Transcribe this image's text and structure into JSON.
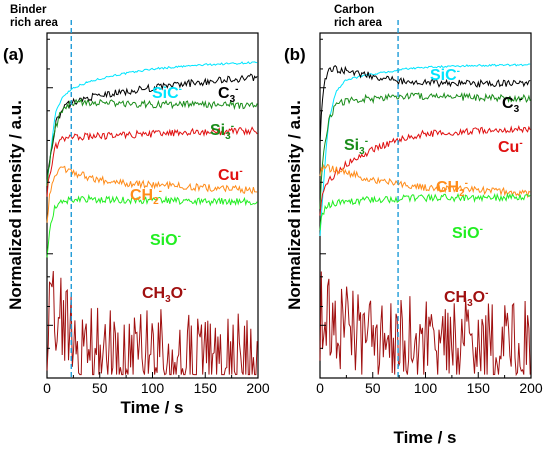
{
  "chart_data": [
    {
      "type": "line",
      "panel_label": "(a)",
      "header": [
        "Binder",
        "rich area"
      ],
      "xlabel": "Time / s",
      "ylabel": "Normalized intensity / a.u.",
      "xlim": [
        0,
        200
      ],
      "xticks": [
        "0",
        "50",
        "100",
        "150",
        "200"
      ],
      "y_scale": "log",
      "vline_x": 23,
      "series": [
        {
          "name": "SiC",
          "charge": "-",
          "color": "#00e5ff",
          "x": [
            0,
            3,
            8,
            15,
            25,
            40,
            60,
            100,
            150,
            200
          ],
          "y": [
            2.0,
            2.5,
            3.9,
            4.6,
            5.0,
            5.3,
            5.6,
            6.0,
            6.25,
            6.4
          ]
        },
        {
          "name": "C",
          "sub": "3",
          "charge": "-",
          "color": "#000000",
          "x": [
            0,
            3,
            8,
            15,
            25,
            40,
            60,
            100,
            150,
            200
          ],
          "y": [
            2.0,
            2.5,
            3.5,
            4.1,
            4.35,
            4.55,
            4.7,
            5.0,
            5.3,
            5.55
          ]
        },
        {
          "name": "Si",
          "sub": "3",
          "charge": "-",
          "color": "#1a8c1a",
          "x": [
            0,
            3,
            8,
            15,
            25,
            40,
            60,
            100,
            150,
            200
          ],
          "y": [
            2.0,
            2.5,
            3.4,
            4.1,
            4.3,
            4.35,
            4.3,
            4.25,
            4.25,
            4.2
          ]
        },
        {
          "name": "Cu",
          "charge": "-",
          "color": "#e01010",
          "x": [
            0,
            3,
            8,
            15,
            25,
            40,
            60,
            100,
            150,
            200
          ],
          "y": [
            1.8,
            2.2,
            2.8,
            3.05,
            3.1,
            3.12,
            3.15,
            3.2,
            3.25,
            3.3
          ]
        },
        {
          "name": "CH",
          "sub": "2",
          "charge": "-",
          "color": "#ff8c1a",
          "x": [
            0,
            3,
            8,
            15,
            25,
            40,
            60,
            100,
            150,
            200
          ],
          "y": [
            1.4,
            1.8,
            2.2,
            2.3,
            2.2,
            2.1,
            2.0,
            1.95,
            1.9,
            1.85
          ]
        },
        {
          "name": "SiO",
          "charge": "-",
          "color": "#22ee22",
          "x": [
            0,
            3,
            8,
            15,
            25,
            40,
            60,
            100,
            150,
            200
          ],
          "y": [
            1.0,
            1.3,
            1.6,
            1.65,
            1.7,
            1.7,
            1.68,
            1.68,
            1.66,
            1.66
          ]
        },
        {
          "name": "CH",
          "sub": "3",
          "mid": "O",
          "charge": "-",
          "color": "#a01010",
          "x": [
            0,
            3,
            8,
            15,
            25,
            40,
            60,
            100,
            150,
            200
          ],
          "y": [
            0.5,
            0.58,
            0.55,
            0.5,
            0.45,
            0.42,
            0.4,
            0.38,
            0.37,
            0.36
          ]
        }
      ]
    },
    {
      "type": "line",
      "panel_label": "(b)",
      "header": [
        "Carbon",
        "rich area"
      ],
      "xlabel": "Time / s",
      "ylabel": "Normalized intensity / a.u.",
      "xlim": [
        0,
        200
      ],
      "xticks": [
        "0",
        "50",
        "100",
        "150",
        "200"
      ],
      "y_scale": "log",
      "vline_x": 74,
      "series": [
        {
          "name": "SiC",
          "charge": "-",
          "color": "#00e5ff",
          "x": [
            0,
            3,
            8,
            15,
            25,
            40,
            60,
            74,
            80,
            100,
            150,
            200
          ],
          "y": [
            1.2,
            1.8,
            3.5,
            4.8,
            5.4,
            5.6,
            5.8,
            5.9,
            6.0,
            6.1,
            6.2,
            6.25
          ]
        },
        {
          "name": "C",
          "sub": "3",
          "charge": "-",
          "color": "#000000",
          "x": [
            0,
            3,
            8,
            15,
            25,
            40,
            60,
            74,
            80,
            100,
            150,
            200
          ],
          "y": [
            3.0,
            5.0,
            5.9,
            6.0,
            5.9,
            5.7,
            5.5,
            5.3,
            5.3,
            5.25,
            5.2,
            5.2
          ]
        },
        {
          "name": "Si",
          "sub": "3",
          "charge": "-",
          "color": "#1a8c1a",
          "x": [
            0,
            3,
            8,
            15,
            25,
            40,
            60,
            74,
            80,
            100,
            150,
            200
          ],
          "y": [
            1.6,
            2.6,
            3.6,
            4.2,
            4.4,
            4.5,
            4.5,
            4.6,
            4.6,
            4.6,
            4.55,
            4.5
          ]
        },
        {
          "name": "Cu",
          "charge": "-",
          "color": "#e01010",
          "x": [
            0,
            3,
            8,
            15,
            25,
            40,
            60,
            74,
            80,
            100,
            150,
            200
          ],
          "y": [
            1.5,
            1.8,
            2.0,
            2.2,
            2.4,
            2.6,
            2.85,
            3.0,
            3.1,
            3.2,
            3.3,
            3.35
          ]
        },
        {
          "name": "CH",
          "sub": "2",
          "charge": "-",
          "color": "#ff8c1a",
          "x": [
            0,
            3,
            8,
            15,
            25,
            40,
            60,
            74,
            80,
            100,
            150,
            200
          ],
          "y": [
            2.2,
            2.3,
            2.3,
            2.25,
            2.2,
            2.1,
            2.0,
            2.0,
            1.95,
            1.9,
            1.85,
            1.8
          ]
        },
        {
          "name": "SiO",
          "charge": "-",
          "color": "#22ee22",
          "x": [
            0,
            3,
            8,
            15,
            25,
            40,
            60,
            74,
            80,
            100,
            150,
            200
          ],
          "y": [
            1.3,
            1.5,
            1.6,
            1.65,
            1.65,
            1.68,
            1.68,
            1.7,
            1.72,
            1.72,
            1.72,
            1.72
          ]
        },
        {
          "name": "CH",
          "sub": "3",
          "mid": "O",
          "charge": "-",
          "color": "#a01010",
          "x": [
            0,
            3,
            8,
            15,
            25,
            40,
            60,
            74,
            80,
            100,
            150,
            200
          ],
          "y": [
            0.55,
            0.55,
            0.52,
            0.5,
            0.48,
            0.46,
            0.45,
            0.44,
            0.44,
            0.43,
            0.43,
            0.43
          ]
        }
      ]
    }
  ]
}
